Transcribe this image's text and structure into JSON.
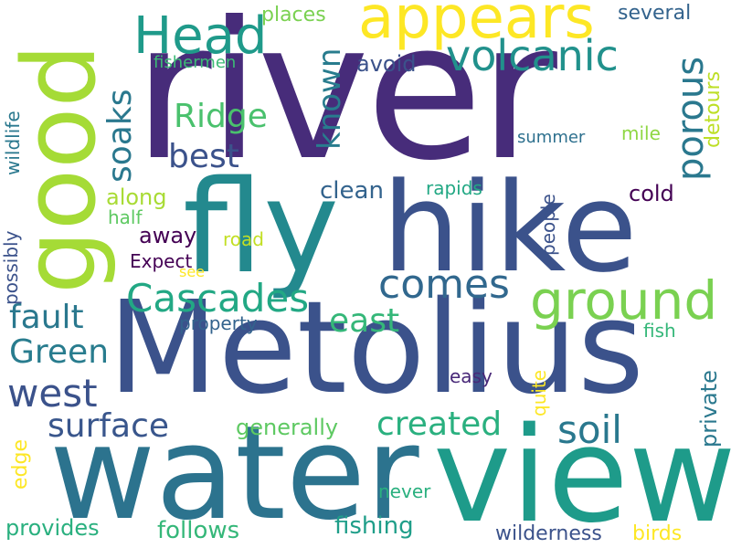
{
  "words": {
    "river": {
      "text": "river",
      "color": "#472c7a"
    },
    "fly": {
      "text": "fly",
      "color": "#23898e"
    },
    "hike": {
      "text": "hike",
      "color": "#3b528b"
    },
    "metolius": {
      "text": "Metolius",
      "color": "#3b528b"
    },
    "water": {
      "text": "water",
      "color": "#2c738e"
    },
    "view": {
      "text": "view",
      "color": "#1e9b8a"
    },
    "good": {
      "text": "good",
      "color": "#a5db36"
    },
    "appears": {
      "text": "appears",
      "color": "#fde725"
    },
    "head": {
      "text": "Head",
      "color": "#1f9a8a"
    },
    "volcanic": {
      "text": "volcanic",
      "color": "#21918c"
    },
    "ground": {
      "text": "ground",
      "color": "#7ad151"
    },
    "cascades": {
      "text": "Cascades",
      "color": "#22a884"
    },
    "comes": {
      "text": "comes",
      "color": "#31688e"
    },
    "porous": {
      "text": "porous",
      "color": "#2a788e"
    },
    "soaks": {
      "text": "soaks",
      "color": "#2a788e"
    },
    "ridge": {
      "text": "Ridge",
      "color": "#4ac16d"
    },
    "best": {
      "text": "best",
      "color": "#3b528b"
    },
    "known": {
      "text": "known",
      "color": "#287c8e"
    },
    "fault": {
      "text": "fault",
      "color": "#2a788e"
    },
    "green": {
      "text": "Green",
      "color": "#287c8e"
    },
    "west": {
      "text": "west",
      "color": "#3b528b"
    },
    "east": {
      "text": "east",
      "color": "#35b779"
    },
    "surface": {
      "text": "surface",
      "color": "#39568c"
    },
    "soil": {
      "text": "soil",
      "color": "#2a788e"
    },
    "created": {
      "text": "created",
      "color": "#2ab07f"
    },
    "generally": {
      "text": "generally",
      "color": "#5ec962"
    },
    "clean": {
      "text": "clean",
      "color": "#33638d"
    },
    "places": {
      "text": "places",
      "color": "#7ad151"
    },
    "several": {
      "text": "several",
      "color": "#33638d"
    },
    "avoid": {
      "text": "avoid",
      "color": "#3b528b"
    },
    "fishermen": {
      "text": "fishermen",
      "color": "#3cbb75"
    },
    "detours": {
      "text": "detours",
      "color": "#bddf26"
    },
    "summer": {
      "text": "summer",
      "color": "#2d708e"
    },
    "mile": {
      "text": "mile",
      "color": "#8fd744"
    },
    "wildlife": {
      "text": "wildlife",
      "color": "#2a788e"
    },
    "along": {
      "text": "along",
      "color": "#a8db34"
    },
    "rapids": {
      "text": "rapids",
      "color": "#22a884"
    },
    "cold": {
      "text": "cold",
      "color": "#440154"
    },
    "half": {
      "text": "half",
      "color": "#5ec962"
    },
    "away": {
      "text": "away",
      "color": "#440154"
    },
    "road": {
      "text": "road",
      "color": "#c2df23"
    },
    "people": {
      "text": "people",
      "color": "#3b528b"
    },
    "expect": {
      "text": "Expect",
      "color": "#440154"
    },
    "see": {
      "text": "see",
      "color": "#fde725"
    },
    "possibly": {
      "text": "possibly",
      "color": "#3b528b"
    },
    "property": {
      "text": "property",
      "color": "#33638d"
    },
    "fish": {
      "text": "fish",
      "color": "#35b779"
    },
    "private": {
      "text": "private",
      "color": "#2a788e"
    },
    "quite": {
      "text": "quite",
      "color": "#fde725"
    },
    "easy": {
      "text": "easy",
      "color": "#482878"
    },
    "edge": {
      "text": "edge",
      "color": "#fde725"
    },
    "never": {
      "text": "never",
      "color": "#2ab07f"
    },
    "provides": {
      "text": "provides",
      "color": "#2ab07f"
    },
    "follows": {
      "text": "follows",
      "color": "#35b779"
    },
    "fishing": {
      "text": "fishing",
      "color": "#1f9e89"
    },
    "wilderness": {
      "text": "wilderness",
      "color": "#3b528b"
    },
    "birds": {
      "text": "birds",
      "color": "#fde725"
    }
  }
}
